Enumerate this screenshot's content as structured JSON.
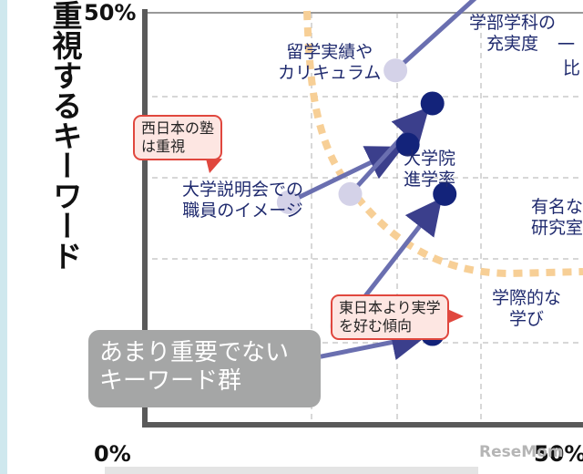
{
  "chart_data": {
    "type": "scatter",
    "ylabel": "重視するキーワード",
    "y_ticks": [
      "50%"
    ],
    "x_ticks": [
      "0%",
      "50%"
    ],
    "colors": {
      "before": "#d4d2e8",
      "after": "#13237a",
      "arrow": "#5a5f9e",
      "curve": "#f7cf96",
      "axis": "#5a5a5a",
      "grid": "#bfbfbf"
    },
    "series": [
      {
        "name": "留学実績やカリキュラム",
        "from": [
          42,
          54
        ],
        "to": [
          83,
          54
        ]
      },
      {
        "name": "大学説明会での職員のイメージ",
        "from": [
          35,
          27
        ],
        "to": [
          64,
          34
        ]
      },
      {
        "name": "大学院進学率",
        "from": [
          48,
          12
        ],
        "to": [
          73,
          28
        ]
      },
      {
        "name": "学部学科の充実度",
        "from": [
          61,
          43
        ],
        "to": [
          92,
          57
        ]
      },
      {
        "name": "有名な研究室",
        "from": [
          50,
          28
        ],
        "to": [
          70,
          39
        ]
      },
      {
        "name": "学際的な学び",
        "from": [
          40,
          8
        ],
        "to": [
          70,
          11
        ]
      }
    ],
    "label_partial": [
      "学部学科の",
      "充実度",
      "比",
      "有名な",
      "研究室",
      "一"
    ],
    "callouts": {
      "west": "西日本の塾\nは重視",
      "east": "東日本より実学\nを好む傾向"
    },
    "region_box": "あまり重要でない\nキーワード群"
  },
  "labels": {
    "study_abroad": "留学実績や\nカリキュラム",
    "info_session": "大学説明会での\n職員のイメージ",
    "grad_school": "大学院\n進学率",
    "dept": "学部学科の\n充実度",
    "dept_dash": "一",
    "hi": "比",
    "research": "有名な\n研究室",
    "interdisc": "学際的な\n学び"
  },
  "watermark": "ReseMom"
}
